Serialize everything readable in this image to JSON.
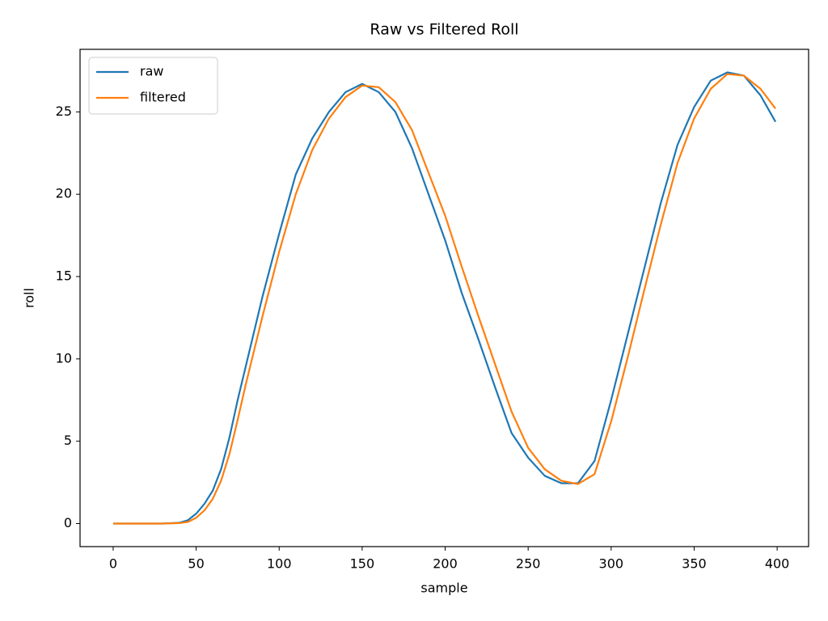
{
  "chart_data": {
    "type": "line",
    "title": "Raw vs Filtered Roll",
    "x_label": "sample",
    "y_label": "roll",
    "x": [
      0,
      10,
      20,
      30,
      40,
      45,
      50,
      55,
      60,
      65,
      70,
      75,
      80,
      90,
      100,
      110,
      120,
      130,
      140,
      150,
      160,
      170,
      180,
      190,
      200,
      210,
      220,
      230,
      240,
      250,
      260,
      270,
      280,
      290,
      300,
      310,
      320,
      330,
      340,
      350,
      360,
      370,
      380,
      390,
      399
    ],
    "series": [
      {
        "name": "raw",
        "color": "#1f77b4",
        "values": [
          0,
          0,
          0,
          0,
          0.05,
          0.2,
          0.6,
          1.2,
          2.0,
          3.3,
          5.2,
          7.5,
          9.6,
          13.8,
          17.6,
          21.2,
          23.4,
          25.0,
          26.2,
          26.7,
          26.2,
          25.0,
          22.8,
          20.0,
          17.2,
          14.0,
          11.2,
          8.3,
          5.5,
          4.0,
          2.9,
          2.45,
          2.45,
          3.8,
          7.5,
          11.5,
          15.5,
          19.5,
          23.0,
          25.3,
          26.9,
          27.4,
          27.2,
          26.0,
          24.4
        ]
      },
      {
        "name": "filtered",
        "color": "#ff7f0e",
        "values": [
          0,
          0,
          0,
          0,
          0.03,
          0.1,
          0.35,
          0.8,
          1.5,
          2.6,
          4.2,
          6.3,
          8.5,
          12.6,
          16.5,
          20.0,
          22.7,
          24.6,
          25.9,
          26.6,
          26.5,
          25.6,
          23.9,
          21.3,
          18.7,
          15.6,
          12.6,
          9.7,
          6.8,
          4.6,
          3.3,
          2.6,
          2.4,
          3.0,
          6.2,
          10.1,
          14.2,
          18.2,
          21.9,
          24.6,
          26.4,
          27.3,
          27.2,
          26.4,
          25.2
        ]
      }
    ],
    "xlim": [
      -19.95,
      418.95
    ],
    "ylim": [
      -1.4,
      28.8
    ],
    "xticks": [
      0,
      50,
      100,
      150,
      200,
      250,
      300,
      350,
      400
    ],
    "yticks": [
      0,
      5,
      10,
      15,
      20,
      25
    ],
    "legend": "upper left",
    "grid": false
  }
}
